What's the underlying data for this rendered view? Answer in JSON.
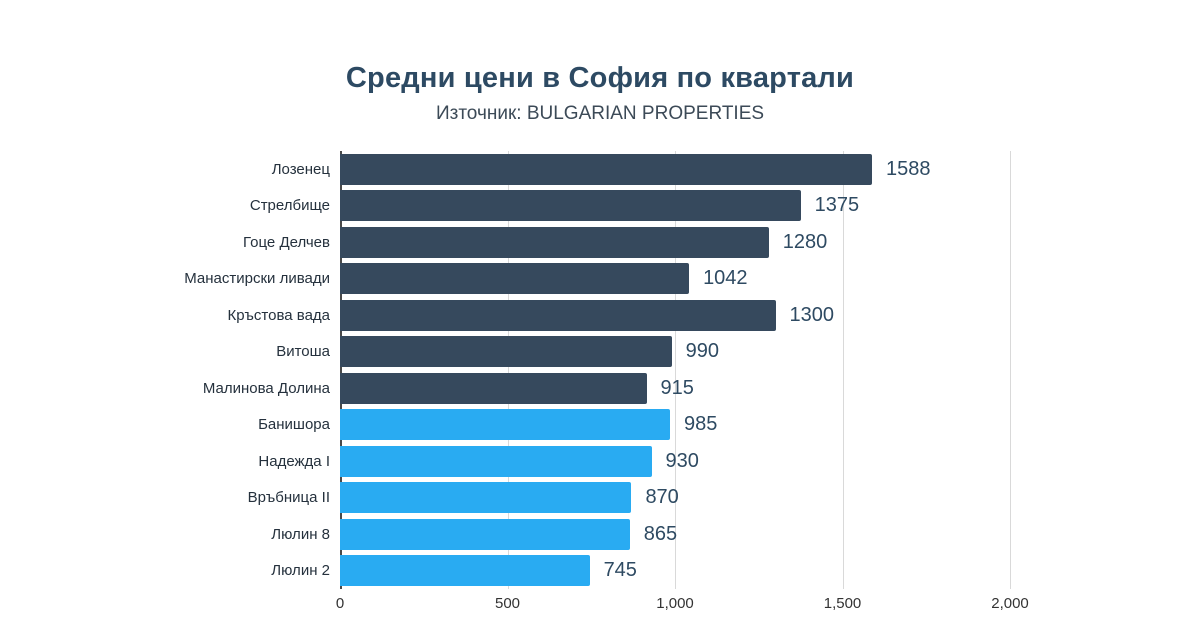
{
  "chart_data": {
    "type": "bar",
    "orientation": "horizontal",
    "title": "Средни цени в София по квартали",
    "subtitle": "Източник: BULGARIAN PROPERTIES",
    "categories": [
      "Лозенец",
      "Стрелбище",
      "Гоце Делчев",
      "Манастирски ливади",
      "Кръстова вада",
      "Витоша",
      "Малинова Долина",
      "Банишора",
      "Надежда I",
      "Връбница II",
      "Люлин 8",
      "Люлин 2"
    ],
    "values": [
      1588,
      1375,
      1280,
      1042,
      1300,
      990,
      915,
      985,
      930,
      870,
      865,
      745
    ],
    "bar_colors": [
      "#36495d",
      "#36495d",
      "#36495d",
      "#36495d",
      "#36495d",
      "#36495d",
      "#36495d",
      "#29abf2",
      "#29abf2",
      "#29abf2",
      "#29abf2",
      "#29abf2"
    ],
    "xlim": [
      0,
      2000
    ],
    "xticks": [
      0,
      500,
      1000,
      1500,
      2000
    ],
    "xtick_labels": [
      "0",
      "500",
      "1,000",
      "1,500",
      "2,000"
    ],
    "grid": "vertical",
    "legend": "none",
    "colors": {
      "dark_bar": "#36495d",
      "blue_bar": "#29abf2",
      "title": "#2d4a63",
      "subtitle": "#3c4a57",
      "value_label": "#2e4a62",
      "gridline": "#d9d9d9",
      "axis_line": "#4a4a4a"
    }
  }
}
